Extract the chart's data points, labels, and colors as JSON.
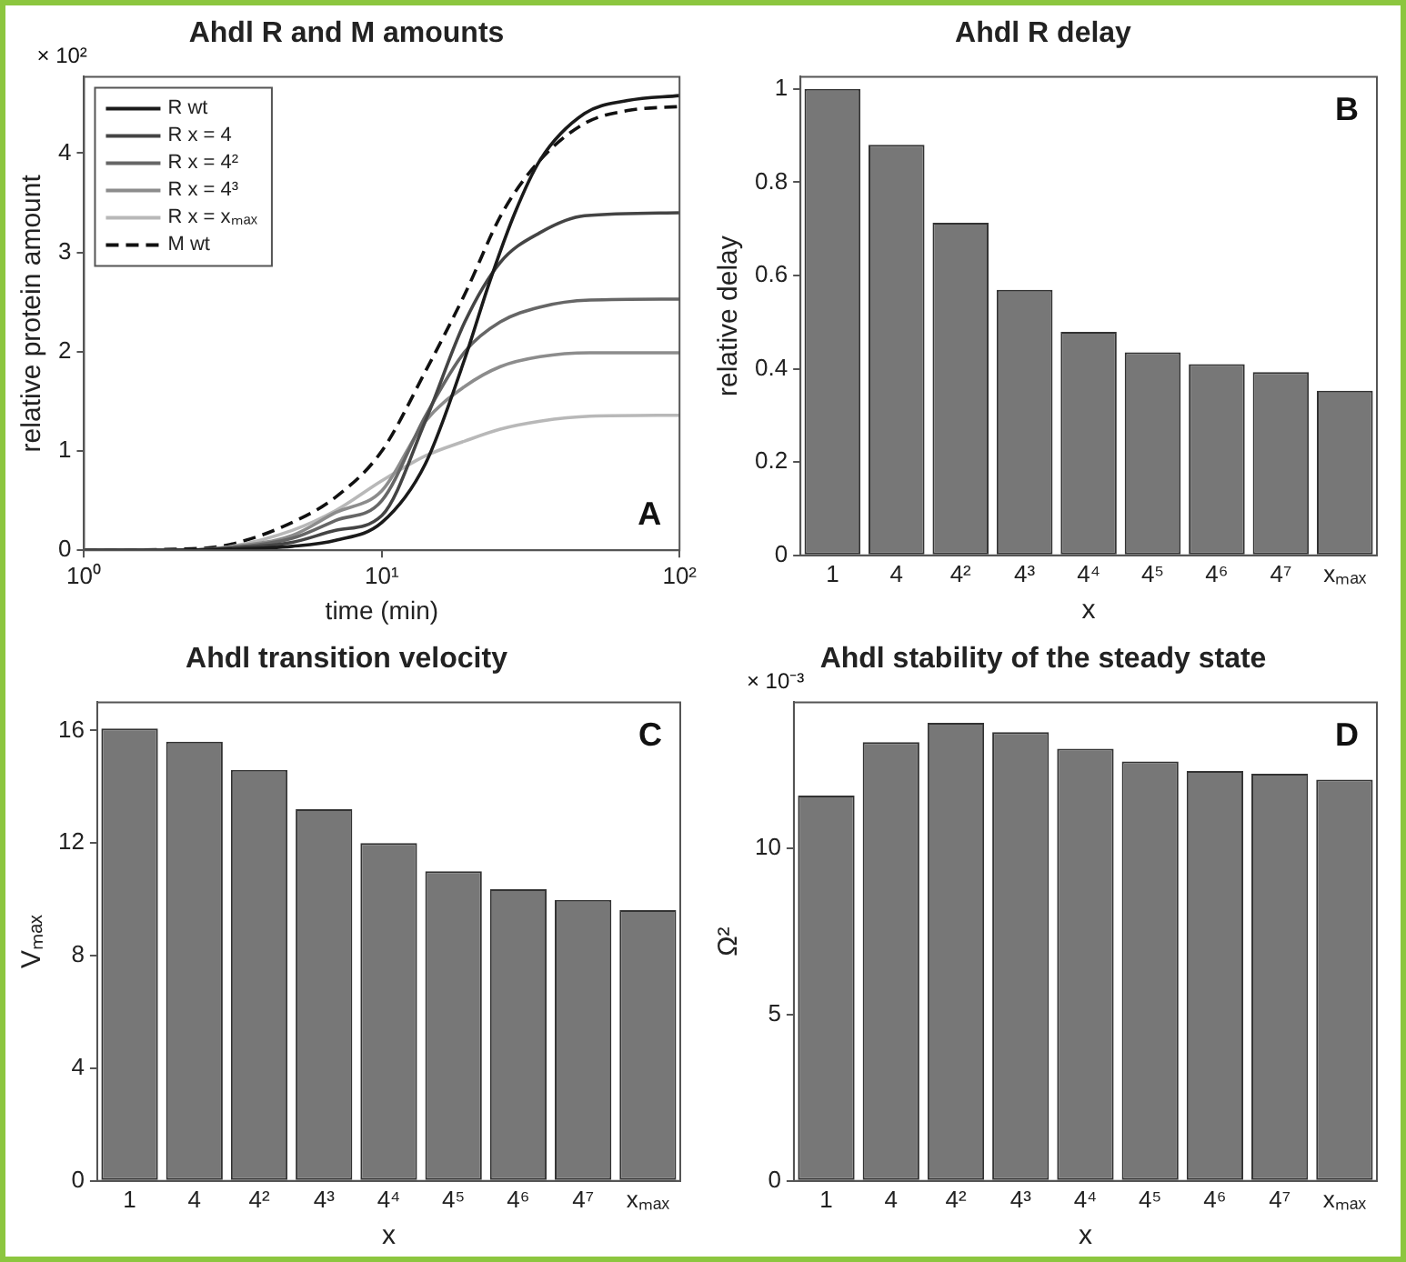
{
  "chart_data": [
    {
      "type": "line",
      "title": "Ahdl R and M amounts",
      "xlabel": "time (min)",
      "ylabel": "relative protein amount",
      "log": "x",
      "xlim": [
        1,
        100
      ],
      "xticks": [
        {
          "value": 1,
          "label": "10⁰"
        },
        {
          "value": 10,
          "label": "10¹"
        },
        {
          "value": 100,
          "label": "10²"
        }
      ],
      "ylim": [
        0,
        4.77
      ],
      "yticks": [
        0,
        1,
        2,
        3,
        4
      ],
      "legend": "top left",
      "grid": false,
      "annotations": [
        "× 10²",
        "A"
      ],
      "series": [
        {
          "name": "R wt",
          "color": "#1a1a1a",
          "line_style": "solid",
          "x": [
            1,
            2,
            3,
            5,
            7,
            10,
            14,
            19,
            23,
            28,
            34,
            48,
            67,
            100
          ],
          "values": [
            0,
            0,
            0.01,
            0.04,
            0.1,
            0.28,
            0.87,
            1.93,
            2.7,
            3.4,
            3.93,
            4.4,
            4.53,
            4.58
          ]
        },
        {
          "name": "R x = 4",
          "color": "#444444",
          "line_style": "solid",
          "x": [
            1,
            2,
            3,
            5,
            7,
            10,
            14,
            19,
            25,
            34,
            48,
            100
          ],
          "values": [
            0,
            0,
            0.02,
            0.08,
            0.2,
            0.35,
            1.3,
            2.3,
            2.9,
            3.2,
            3.37,
            3.4
          ]
        },
        {
          "name": "R x = 4²",
          "color": "#666666",
          "line_style": "solid",
          "x": [
            1,
            2,
            3,
            5,
            7,
            10,
            14,
            19,
            25,
            34,
            50,
            100
          ],
          "values": [
            0,
            0,
            0.02,
            0.12,
            0.3,
            0.5,
            1.35,
            2.0,
            2.3,
            2.45,
            2.52,
            2.53
          ]
        },
        {
          "name": "R x = 4³",
          "color": "#8c8c8c",
          "line_style": "solid",
          "x": [
            1,
            2,
            3,
            5,
            7,
            10,
            14,
            19,
            25,
            34,
            50,
            100
          ],
          "values": [
            0,
            0,
            0.03,
            0.15,
            0.38,
            0.6,
            1.3,
            1.65,
            1.85,
            1.95,
            1.99,
            1.99
          ]
        },
        {
          "name": "R x = xₘₐₓ",
          "color": "#b8b8b8",
          "line_style": "solid",
          "x": [
            1,
            2,
            3,
            5,
            7,
            10,
            14,
            19,
            25,
            34,
            50,
            100
          ],
          "values": [
            0,
            0,
            0.03,
            0.2,
            0.4,
            0.7,
            0.95,
            1.1,
            1.22,
            1.3,
            1.35,
            1.36
          ]
        },
        {
          "name": "M wt",
          "color": "#111111",
          "line_style": "dashed",
          "x": [
            1,
            2,
            3,
            5,
            7.1,
            10,
            14,
            19,
            25.4,
            34,
            48,
            67,
            100
          ],
          "values": [
            0,
            0.01,
            0.05,
            0.28,
            0.55,
            1.0,
            1.8,
            2.58,
            3.4,
            3.93,
            4.3,
            4.43,
            4.47
          ]
        }
      ]
    },
    {
      "type": "bar",
      "title": "Ahdl R delay",
      "xlabel": "x",
      "ylabel": "relative delay",
      "categories": [
        "1",
        "4",
        "4²",
        "4³",
        "4⁴",
        "4⁵",
        "4⁶",
        "4⁷",
        "xₘₐₓ"
      ],
      "values": [
        1.0,
        0.88,
        0.713,
        0.569,
        0.479,
        0.435,
        0.41,
        0.393,
        0.353
      ],
      "color": "#777777",
      "ylim": [
        0,
        1.026
      ],
      "yticks": [
        0,
        0.2,
        0.4,
        0.6,
        0.8,
        1
      ],
      "grid": false,
      "legend": false,
      "annotations": [
        "B"
      ]
    },
    {
      "type": "bar",
      "title": "Ahdl transition velocity",
      "xlabel": "x",
      "ylabel": "Vₘₐₓ",
      "categories": [
        "1",
        "4",
        "4²",
        "4³",
        "4⁴",
        "4⁵",
        "4⁶",
        "4⁷",
        "xₘₐₓ"
      ],
      "values": [
        16.07,
        15.6,
        14.6,
        13.2,
        12.0,
        11.0,
        10.36,
        9.98,
        9.62
      ],
      "color": "#777777",
      "ylim": [
        0,
        17
      ],
      "yticks": [
        0,
        4,
        8,
        12,
        16
      ],
      "grid": false,
      "legend": false,
      "annotations": [
        "C"
      ]
    },
    {
      "type": "bar",
      "title": "Ahdl stability of the steady state",
      "xlabel": "x",
      "ylabel": "Ω²",
      "categories": [
        "1",
        "4",
        "4²",
        "4³",
        "4⁴",
        "4⁵",
        "4⁶",
        "4⁷",
        "xₘₐₓ"
      ],
      "values": [
        11.59,
        13.2,
        13.78,
        13.5,
        13.0,
        12.62,
        12.33,
        12.25,
        12.07
      ],
      "color": "#777777",
      "ylim": [
        0,
        14.4
      ],
      "yticks": [
        0,
        5,
        10
      ],
      "grid": false,
      "legend": false,
      "annotations": [
        "× 10⁻³",
        "D"
      ]
    }
  ]
}
